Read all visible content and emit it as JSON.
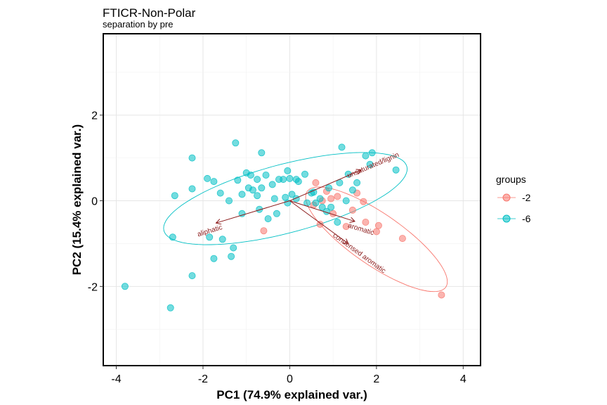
{
  "chart_data": {
    "type": "scatter",
    "title": "FTICR-Non-Polar",
    "subtitle": "separation by pre",
    "xlabel": "PC1 (74.9% explained var.)",
    "ylabel": "PC2 (15.4% explained var.)",
    "xlim": [
      -4.3,
      4.4
    ],
    "ylim": [
      -3.85,
      3.9
    ],
    "x_ticks": [
      -4,
      -2,
      0,
      2,
      4
    ],
    "y_ticks": [
      -2,
      0,
      2
    ],
    "x_tick_labels": [
      "-4",
      "-2",
      "0",
      "2",
      "4"
    ],
    "y_tick_labels": [
      "-2",
      "0",
      "2"
    ],
    "grid": true,
    "legend": {
      "title": "groups",
      "position": "right"
    },
    "series": [
      {
        "name": "-2",
        "color": "#F8766D",
        "ellipse": {
          "cx": 2.0,
          "cy": -0.9,
          "rx": 1.95,
          "ry": 0.6,
          "angle_deg": -35
        },
        "points": [
          [
            0.6,
            0.42
          ],
          [
            0.85,
            0.22
          ],
          [
            0.95,
            0.05
          ],
          [
            0.75,
            0.0
          ],
          [
            0.55,
            -0.1
          ],
          [
            1.1,
            0.1
          ],
          [
            1.0,
            -0.3
          ],
          [
            0.7,
            -0.55
          ],
          [
            1.55,
            0.18
          ],
          [
            1.7,
            -0.02
          ],
          [
            1.45,
            -0.22
          ],
          [
            1.75,
            -0.5
          ],
          [
            1.3,
            -0.6
          ],
          [
            2.05,
            -0.58
          ],
          [
            2.0,
            -0.72
          ],
          [
            2.6,
            -0.88
          ],
          [
            -0.6,
            -0.7
          ],
          [
            3.5,
            -2.2
          ]
        ]
      },
      {
        "name": "-6",
        "color": "#00BFC4",
        "ellipse": {
          "cx": -0.1,
          "cy": 0.05,
          "rx": 2.9,
          "ry": 0.8,
          "angle_deg": 15
        },
        "points": [
          [
            -3.8,
            -2.0
          ],
          [
            -2.75,
            -2.5
          ],
          [
            -2.7,
            -0.85
          ],
          [
            -2.65,
            0.12
          ],
          [
            -2.25,
            1.0
          ],
          [
            -2.25,
            0.28
          ],
          [
            -2.25,
            -1.75
          ],
          [
            -1.9,
            0.52
          ],
          [
            -1.85,
            -0.85
          ],
          [
            -1.75,
            0.45
          ],
          [
            -1.75,
            -1.35
          ],
          [
            -1.6,
            0.18
          ],
          [
            -1.55,
            -0.9
          ],
          [
            -1.4,
            0.0
          ],
          [
            -1.35,
            -1.3
          ],
          [
            -1.3,
            -1.1
          ],
          [
            -1.25,
            1.35
          ],
          [
            -1.2,
            0.48
          ],
          [
            -1.1,
            0.15
          ],
          [
            -1.1,
            -0.3
          ],
          [
            -1.0,
            0.65
          ],
          [
            -0.95,
            0.3
          ],
          [
            -0.9,
            0.6
          ],
          [
            -0.85,
            0.25
          ],
          [
            -0.75,
            0.5
          ],
          [
            -0.75,
            0.12
          ],
          [
            -0.7,
            -0.2
          ],
          [
            -0.65,
            1.12
          ],
          [
            -0.65,
            0.3
          ],
          [
            -0.55,
            0.6
          ],
          [
            -0.5,
            -0.42
          ],
          [
            -0.4,
            0.38
          ],
          [
            -0.35,
            0.05
          ],
          [
            -0.3,
            -0.3
          ],
          [
            -0.25,
            0.5
          ],
          [
            -0.15,
            0.5
          ],
          [
            -0.1,
            0.08
          ],
          [
            -0.05,
            0.7
          ],
          [
            0.0,
            0.52
          ],
          [
            0.05,
            0.15
          ],
          [
            0.15,
            0.5
          ],
          [
            0.2,
            0.45
          ],
          [
            0.35,
            0.62
          ],
          [
            0.4,
            -0.05
          ],
          [
            0.5,
            0.18
          ],
          [
            0.55,
            0.2
          ],
          [
            0.6,
            -0.05
          ],
          [
            0.7,
            0.05
          ],
          [
            0.75,
            -0.15
          ],
          [
            0.85,
            -0.25
          ],
          [
            0.9,
            0.3
          ],
          [
            1.15,
            0.42
          ],
          [
            1.2,
            1.25
          ],
          [
            1.35,
            0.62
          ],
          [
            1.45,
            0.25
          ],
          [
            1.55,
            0.42
          ],
          [
            1.75,
            1.05
          ],
          [
            1.85,
            0.85
          ],
          [
            1.9,
            1.12
          ],
          [
            2.45,
            0.72
          ],
          [
            0.15,
            0.05
          ],
          [
            1.1,
            -0.5
          ],
          [
            0.95,
            -0.15
          ],
          [
            1.3,
            0.0
          ],
          [
            -0.05,
            -0.05
          ]
        ]
      }
    ],
    "loadings": [
      {
        "label": "unsaturated/lignin",
        "x": 1.65,
        "y": 0.72
      },
      {
        "label": "aliphatic",
        "x": -1.7,
        "y": -0.52
      },
      {
        "label": "aromatic",
        "x": 1.5,
        "y": -0.48
      },
      {
        "label": "condensed aromatic",
        "x": 1.35,
        "y": -1.0
      }
    ],
    "arrow_color": "#8B1A1A"
  }
}
